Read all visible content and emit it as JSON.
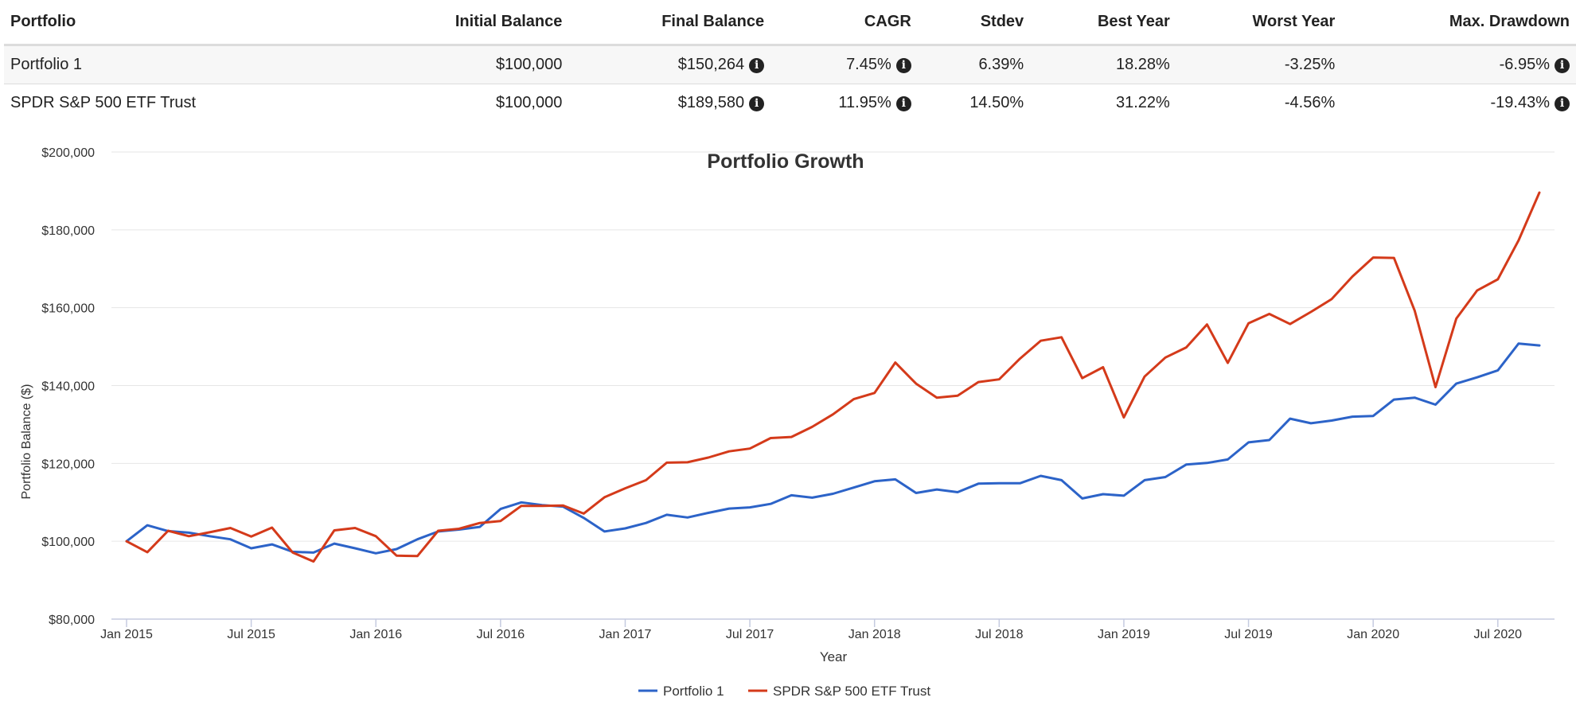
{
  "table": {
    "headers": [
      "Portfolio",
      "Initial Balance",
      "Final Balance",
      "CAGR",
      "Stdev",
      "Best Year",
      "Worst Year",
      "Max. Drawdown"
    ],
    "rows": [
      {
        "name": "Portfolio 1",
        "initial_balance": "$100,000",
        "final_balance": "$150,264",
        "cagr": "7.45%",
        "stdev": "6.39%",
        "best_year": "18.28%",
        "worst_year": "-3.25%",
        "max_drawdown": "-6.95%"
      },
      {
        "name": "SPDR S&P 500 ETF Trust",
        "initial_balance": "$100,000",
        "final_balance": "$189,580",
        "cagr": "11.95%",
        "stdev": "14.50%",
        "best_year": "31.22%",
        "worst_year": "-4.56%",
        "max_drawdown": "-19.43%"
      }
    ],
    "info_icon": "info-circle-icon"
  },
  "chart_data": {
    "type": "line",
    "title": "Portfolio Growth",
    "xlabel": "Year",
    "ylabel": "Portfolio Balance ($)",
    "ylim": [
      80000,
      200000
    ],
    "yticks": [
      80000,
      100000,
      120000,
      140000,
      160000,
      180000,
      200000
    ],
    "ytick_labels": [
      "$80,000",
      "$100,000",
      "$120,000",
      "$140,000",
      "$160,000",
      "$180,000",
      "$200,000"
    ],
    "xticks": [
      "2015-01",
      "2015-07",
      "2016-01",
      "2016-07",
      "2017-01",
      "2017-07",
      "2018-01",
      "2018-07",
      "2019-01",
      "2019-07",
      "2020-01",
      "2020-07"
    ],
    "xtick_labels": [
      "Jan 2015",
      "Jul 2015",
      "Jan 2016",
      "Jul 2016",
      "Jan 2017",
      "Jul 2017",
      "Jan 2018",
      "Jul 2018",
      "Jan 2019",
      "Jul 2019",
      "Jan 2020",
      "Jul 2020"
    ],
    "x": [
      "2015-01",
      "2015-02",
      "2015-03",
      "2015-04",
      "2015-05",
      "2015-06",
      "2015-07",
      "2015-08",
      "2015-09",
      "2015-10",
      "2015-11",
      "2015-12",
      "2016-01",
      "2016-02",
      "2016-03",
      "2016-04",
      "2016-05",
      "2016-06",
      "2016-07",
      "2016-08",
      "2016-09",
      "2016-10",
      "2016-11",
      "2016-12",
      "2017-01",
      "2017-02",
      "2017-03",
      "2017-04",
      "2017-05",
      "2017-06",
      "2017-07",
      "2017-08",
      "2017-09",
      "2017-10",
      "2017-11",
      "2017-12",
      "2018-01",
      "2018-02",
      "2018-03",
      "2018-04",
      "2018-05",
      "2018-06",
      "2018-07",
      "2018-08",
      "2018-09",
      "2018-10",
      "2018-11",
      "2018-12",
      "2019-01",
      "2019-02",
      "2019-03",
      "2019-04",
      "2019-05",
      "2019-06",
      "2019-07",
      "2019-08",
      "2019-09",
      "2019-10",
      "2019-11",
      "2019-12",
      "2020-01",
      "2020-02",
      "2020-03",
      "2020-04",
      "2020-05",
      "2020-06",
      "2020-07",
      "2020-08",
      "2020-09"
    ],
    "series": [
      {
        "name": "Portfolio 1",
        "color": "#2c63c8",
        "values": [
          100000,
          104100,
          102600,
          102200,
          101300,
          100500,
          98200,
          99200,
          97300,
          97100,
          99400,
          98200,
          96900,
          98000,
          100500,
          102500,
          103000,
          103700,
          108300,
          110000,
          109300,
          108900,
          106000,
          102500,
          103300,
          104700,
          106800,
          106100,
          107300,
          108400,
          108700,
          109600,
          111800,
          111200,
          112200,
          113800,
          115400,
          115900,
          112400,
          113300,
          112600,
          114800,
          114900,
          114900,
          116800,
          115700,
          111000,
          112100,
          111700,
          115700,
          116500,
          119700,
          120100,
          121000,
          125400,
          126000,
          131500,
          130300,
          131000,
          132000,
          132200,
          136400,
          136900,
          135100,
          140500,
          142100,
          143900,
          150800,
          150300
        ]
      },
      {
        "name": "SPDR S&P 500 ETF Trust",
        "color": "#d43a1a",
        "values": [
          100000,
          97200,
          102700,
          101300,
          102300,
          103400,
          101200,
          103500,
          97100,
          94800,
          102800,
          103400,
          101300,
          96300,
          96200,
          102700,
          103200,
          104700,
          105200,
          109100,
          109100,
          109200,
          107100,
          111300,
          113600,
          115700,
          120200,
          120300,
          121500,
          123100,
          123800,
          126500,
          126800,
          129400,
          132600,
          136500,
          138100,
          145900,
          140500,
          136900,
          137400,
          140900,
          141600,
          146900,
          151500,
          152400,
          141900,
          144700,
          131800,
          142300,
          147200,
          149800,
          155700,
          145800,
          156000,
          158400,
          155800,
          158900,
          162200,
          168000,
          172900,
          172800,
          159200,
          139600,
          157200,
          164400,
          167300,
          177300,
          189580
        ]
      }
    ],
    "grid": true,
    "legend": "bottom-center"
  }
}
